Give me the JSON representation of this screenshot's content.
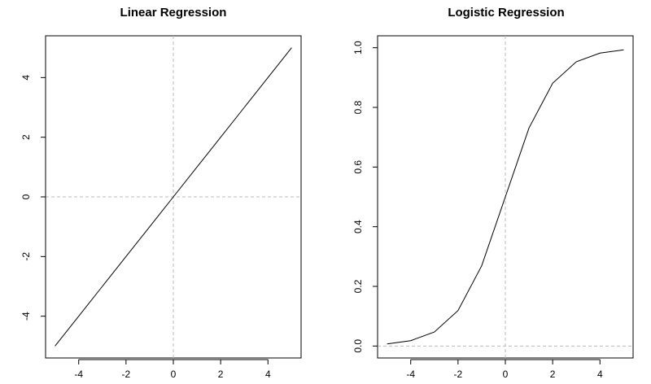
{
  "chart_data": [
    {
      "type": "line",
      "title": "Linear Regression",
      "xlabel": "",
      "ylabel": "",
      "xlim": [
        -5.4,
        5.4
      ],
      "ylim": [
        -5.4,
        5.4
      ],
      "xticks": [
        -4,
        -2,
        0,
        2,
        4
      ],
      "yticks": [
        -4,
        -2,
        0,
        2,
        4
      ],
      "xtick_labels": [
        "-4",
        "-2",
        "0",
        "2",
        "4"
      ],
      "ytick_labels": [
        "-4",
        "-2",
        "0",
        "2",
        "4"
      ],
      "ref_x": 0,
      "ref_y": 0,
      "grid": false,
      "x": [
        -5,
        -4,
        -3,
        -2,
        -1,
        0,
        1,
        2,
        3,
        4,
        5
      ],
      "series": [
        {
          "values": [
            -5,
            -4,
            -3,
            -2,
            -1,
            0,
            1,
            2,
            3,
            4,
            5
          ]
        }
      ]
    },
    {
      "type": "line",
      "title": "Logistic Regression",
      "xlabel": "",
      "ylabel": "",
      "xlim": [
        -5.4,
        5.4
      ],
      "ylim": [
        -0.04,
        1.04
      ],
      "xticks": [
        -4,
        -2,
        0,
        2,
        4
      ],
      "yticks": [
        0.0,
        0.2,
        0.4,
        0.6,
        0.8,
        1.0
      ],
      "xtick_labels": [
        "-4",
        "-2",
        "0",
        "2",
        "4"
      ],
      "ytick_labels": [
        "0.0",
        "0.2",
        "0.4",
        "0.6",
        "0.8",
        "1.0"
      ],
      "ref_x": 0,
      "ref_y": 0,
      "grid": false,
      "x": [
        -5,
        -4,
        -3,
        -2,
        -1,
        0,
        1,
        2,
        3,
        4,
        5
      ],
      "series": [
        {
          "values": [
            0.007,
            0.018,
            0.047,
            0.119,
            0.269,
            0.5,
            0.731,
            0.881,
            0.953,
            0.982,
            0.993
          ]
        }
      ]
    }
  ]
}
